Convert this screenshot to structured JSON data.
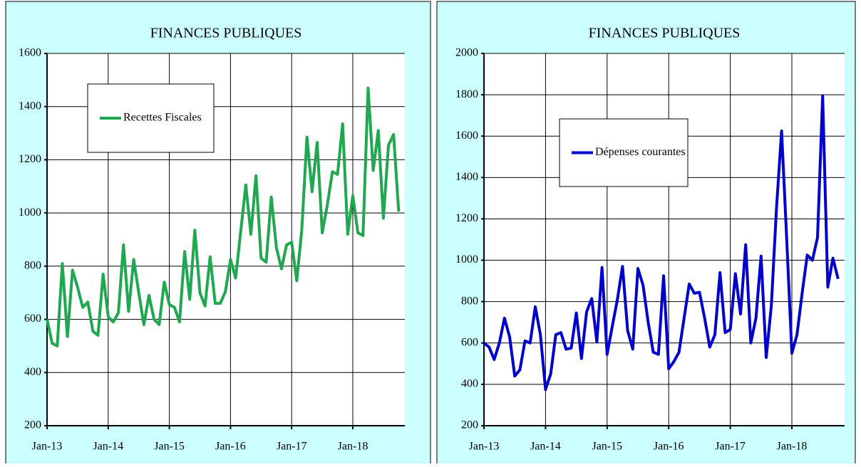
{
  "chart_data": [
    {
      "type": "line",
      "title": "FINANCES PUBLIQUES",
      "categories": [
        "Jan-13",
        null,
        null,
        null,
        null,
        null,
        null,
        null,
        null,
        null,
        null,
        null,
        "Jan-14",
        null,
        null,
        null,
        null,
        null,
        null,
        null,
        null,
        null,
        null,
        null,
        "Jan-15",
        null,
        null,
        null,
        null,
        null,
        null,
        null,
        null,
        null,
        null,
        null,
        "Jan-16",
        null,
        null,
        null,
        null,
        null,
        null,
        null,
        null,
        null,
        null,
        null,
        "Jan-17",
        null,
        null,
        null,
        null,
        null,
        null,
        null,
        null,
        null,
        null,
        null,
        "Jan-18",
        null,
        null,
        null,
        null,
        null,
        null,
        null,
        null,
        null
      ],
      "series": [
        {
          "name": "Recettes Fiscales",
          "color": "#1fa84f",
          "values": [
            600,
            510,
            500,
            810,
            535,
            785,
            720,
            645,
            665,
            555,
            540,
            770,
            610,
            590,
            625,
            880,
            630,
            825,
            700,
            580,
            690,
            600,
            580,
            740,
            655,
            645,
            590,
            855,
            675,
            935,
            700,
            650,
            835,
            660,
            660,
            705,
            825,
            755,
            930,
            1105,
            920,
            1140,
            830,
            815,
            1060,
            870,
            790,
            880,
            890,
            745,
            940,
            1285,
            1080,
            1265,
            925,
            1030,
            1155,
            1145,
            1335,
            920,
            1065,
            925,
            915,
            1470,
            1160,
            1310,
            980,
            1255,
            1295,
            1005
          ]
        }
      ],
      "ylim": [
        200,
        1600
      ],
      "yticks": [
        200,
        400,
        600,
        800,
        1000,
        1200,
        1400,
        1600
      ],
      "grid": true,
      "legend": "upper left"
    },
    {
      "type": "line",
      "title": "FINANCES PUBLIQUES",
      "categories": [
        "Jan-13",
        null,
        null,
        null,
        null,
        null,
        null,
        null,
        null,
        null,
        null,
        null,
        "Jan-14",
        null,
        null,
        null,
        null,
        null,
        null,
        null,
        null,
        null,
        null,
        null,
        "Jan-15",
        null,
        null,
        null,
        null,
        null,
        null,
        null,
        null,
        null,
        null,
        null,
        "Jan-16",
        null,
        null,
        null,
        null,
        null,
        null,
        null,
        null,
        null,
        null,
        null,
        "Jan-17",
        null,
        null,
        null,
        null,
        null,
        null,
        null,
        null,
        null,
        null,
        null,
        "Jan-18",
        null,
        null,
        null,
        null,
        null,
        null,
        null,
        null,
        null
      ],
      "series": [
        {
          "name": "Dépenses courantes",
          "color": "#0000cc",
          "values": [
            600,
            580,
            520,
            600,
            720,
            630,
            440,
            470,
            610,
            600,
            775,
            640,
            375,
            450,
            640,
            650,
            570,
            575,
            745,
            525,
            750,
            815,
            605,
            965,
            545,
            680,
            810,
            970,
            660,
            570,
            960,
            880,
            700,
            555,
            545,
            925,
            475,
            510,
            555,
            720,
            885,
            840,
            845,
            720,
            580,
            640,
            940,
            650,
            665,
            935,
            740,
            1075,
            600,
            720,
            1020,
            530,
            780,
            1250,
            1625,
            1100,
            550,
            640,
            840,
            1025,
            1000,
            1110,
            1795,
            870,
            1010,
            910
          ]
        }
      ],
      "ylim": [
        200,
        2000
      ],
      "yticks": [
        200,
        400,
        600,
        800,
        1000,
        1200,
        1400,
        1600,
        1800,
        2000
      ],
      "grid": true,
      "legend": "upper left"
    }
  ]
}
